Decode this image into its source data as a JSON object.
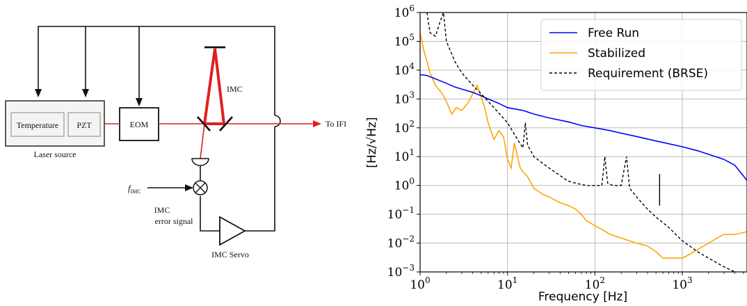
{
  "diagram": {
    "labels": {
      "temperature": "Temperature",
      "pzt": "PZT",
      "eom": "EOM",
      "laser_source": "Laser source",
      "imc": "IMC",
      "to_ifi": "To IFI",
      "f_imc_main": "f",
      "f_imc_sub": "IMC",
      "error_line1": "IMC",
      "error_line2": "error signal",
      "imc_servo": "IMC Servo"
    },
    "colors": {
      "beam": "#e0201c",
      "line": "#111111"
    }
  },
  "chart_data": {
    "type": "line",
    "xscale": "log",
    "yscale": "log",
    "xlim": [
      1,
      5500
    ],
    "ylim": [
      0.001,
      1000000
    ],
    "xlabel": "Frequency [Hz]",
    "ylabel": "[Hz/√Hz]",
    "legend_position": "top-right",
    "grid": true,
    "x_ticks": [
      {
        "value": 1,
        "base": "10",
        "exp": "0"
      },
      {
        "value": 10,
        "base": "10",
        "exp": "1"
      },
      {
        "value": 100,
        "base": "10",
        "exp": "2"
      },
      {
        "value": 1000,
        "base": "10",
        "exp": "3"
      }
    ],
    "y_ticks": [
      {
        "value": 0.001,
        "base": "10",
        "exp": "−3"
      },
      {
        "value": 0.01,
        "base": "10",
        "exp": "−2"
      },
      {
        "value": 0.1,
        "base": "10",
        "exp": "−1"
      },
      {
        "value": 1,
        "base": "10",
        "exp": "0"
      },
      {
        "value": 10,
        "base": "10",
        "exp": "1"
      },
      {
        "value": 100,
        "base": "10",
        "exp": "2"
      },
      {
        "value": 1000,
        "base": "10",
        "exp": "3"
      },
      {
        "value": 10000,
        "base": "10",
        "exp": "4"
      },
      {
        "value": 100000,
        "base": "10",
        "exp": "5"
      },
      {
        "value": 1000000,
        "base": "10",
        "exp": "6"
      }
    ],
    "series": [
      {
        "name": "Free Run",
        "color": "#0000ff",
        "style": "solid",
        "x": [
          1.0,
          1.2,
          1.5,
          2,
          2.5,
          3,
          4,
          5,
          6,
          8,
          10,
          15,
          20,
          30,
          50,
          70,
          100,
          150,
          200,
          300,
          500,
          700,
          1000,
          1500,
          2000,
          3000,
          4000,
          5500
        ],
        "y": [
          7000,
          6500,
          5000,
          3500,
          2600,
          2200,
          1700,
          1300,
          1000,
          700,
          500,
          400,
          300,
          220,
          160,
          120,
          100,
          80,
          65,
          50,
          35,
          28,
          22,
          16,
          12,
          8,
          5,
          1.5
        ]
      },
      {
        "name": "Stabilized",
        "color": "#ffa500",
        "style": "solid",
        "x": [
          1.0,
          1.05,
          1.1,
          1.2,
          1.3,
          1.5,
          1.8,
          2,
          2.3,
          2.6,
          3,
          3.5,
          4,
          4.5,
          5,
          5.5,
          6,
          7,
          8,
          9,
          10,
          11,
          12,
          13,
          14,
          15,
          17,
          20,
          25,
          30,
          40,
          50,
          60,
          70,
          80,
          100,
          120,
          150,
          200,
          300,
          400,
          500,
          600,
          700,
          800,
          1000,
          1200,
          1500,
          2000,
          2500,
          3000,
          4000,
          5500
        ],
        "y": [
          200000,
          100000,
          50000,
          20000,
          8000,
          3000,
          1500,
          800,
          300,
          500,
          400,
          700,
          1500,
          3000,
          1200,
          500,
          150,
          40,
          80,
          50,
          8,
          4,
          30,
          10,
          4,
          3,
          2,
          0.8,
          0.5,
          0.4,
          0.25,
          0.2,
          0.15,
          0.1,
          0.06,
          0.04,
          0.03,
          0.02,
          0.015,
          0.01,
          0.008,
          0.005,
          0.003,
          0.003,
          0.003,
          0.003,
          0.004,
          0.006,
          0.01,
          0.015,
          0.02,
          0.02,
          0.025
        ]
      },
      {
        "name": "Requirement (BRSE)",
        "color": "#000000",
        "style": "dashed",
        "x": [
          1.2,
          1.3,
          1.5,
          1.7,
          1.85,
          2,
          2.5,
          3,
          4,
          5,
          7,
          10,
          13,
          15,
          16,
          17,
          20,
          25,
          30,
          40,
          48,
          50,
          60,
          80,
          100,
          120,
          130,
          140,
          160,
          200,
          230,
          250,
          300,
          400,
          500,
          700,
          1000,
          1500,
          2000,
          3000,
          4000
        ],
        "y": [
          1000000,
          200000,
          150000,
          500000,
          1000000,
          100000,
          20000,
          8000,
          3000,
          1500,
          500,
          150,
          40,
          20,
          150,
          25,
          10,
          6,
          4,
          2.2,
          1.5,
          1.4,
          1.2,
          1.0,
          1.0,
          1.0,
          10,
          1.2,
          1.0,
          1.0,
          10,
          0.8,
          0.4,
          0.15,
          0.08,
          0.035,
          0.012,
          0.005,
          0.003,
          0.0015,
          0.001
        ]
      }
    ],
    "annotations": [
      {
        "x": 550,
        "y": 0.2,
        "height": 2.5,
        "color": "#000000",
        "style": "solid"
      }
    ]
  }
}
